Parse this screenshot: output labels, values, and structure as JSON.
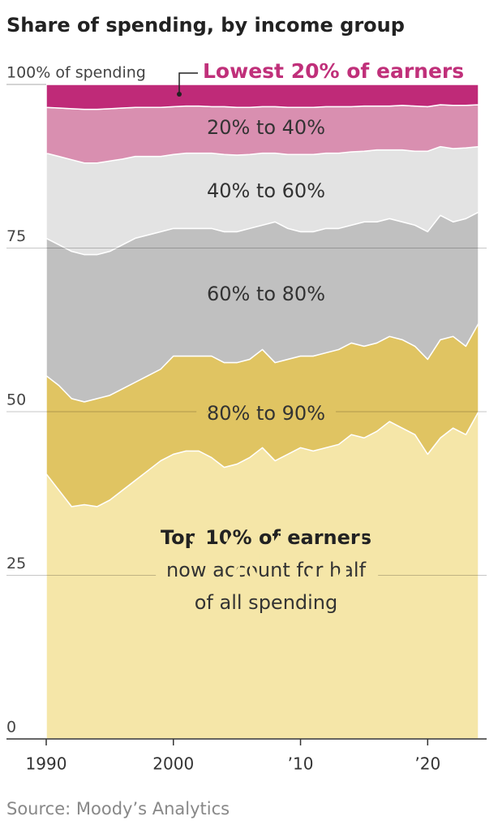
{
  "chart_data": {
    "type": "stacked_area",
    "title": "Share of spending, by income group",
    "source": "Source: Moody’s Analytics",
    "annotation": [
      "now account for half",
      "of all spending"
    ],
    "x": [
      1990,
      1991,
      1992,
      1993,
      1994,
      1995,
      1996,
      1997,
      1998,
      1999,
      2000,
      2001,
      2002,
      2003,
      2004,
      2005,
      2006,
      2007,
      2008,
      2009,
      2010,
      2011,
      2012,
      2013,
      2014,
      2015,
      2016,
      2017,
      2018,
      2019,
      2020,
      2021,
      2022,
      2023,
      2024
    ],
    "xlim": [
      1990,
      2024
    ],
    "xticks": [
      1990,
      2000,
      {
        "value": 2010,
        "label": "’10"
      },
      {
        "value": 2020,
        "label": "’20"
      }
    ],
    "ylim": [
      0,
      100
    ],
    "yticks": [
      0,
      25,
      50,
      75,
      {
        "value": 100,
        "label": "100% of spending"
      }
    ],
    "grid": true,
    "series": [
      {
        "name": "Top 10% of earners",
        "color": "#f5e6a8",
        "values": [
          40.5,
          38,
          35.5,
          35.8,
          35.5,
          36.5,
          38,
          39.5,
          41,
          42.5,
          43.5,
          44,
          44,
          43,
          41.5,
          42,
          43,
          44.5,
          42.5,
          43.5,
          44.5,
          44,
          44.5,
          45,
          46.5,
          46,
          47,
          48.5,
          47.5,
          46.5,
          43.5,
          46,
          47.5,
          46.5,
          50
        ]
      },
      {
        "name": "80% to 90%",
        "color": "#e0c462",
        "values": [
          15,
          16,
          16.5,
          15.7,
          16.5,
          16,
          15.5,
          15,
          14.5,
          14,
          15,
          14.5,
          14.5,
          15.5,
          16,
          15.5,
          15,
          15,
          15,
          14.5,
          14,
          14.5,
          14.5,
          14.5,
          14,
          14,
          13.5,
          13,
          13.5,
          13.5,
          14.5,
          15,
          14,
          13.5,
          13.5
        ]
      },
      {
        "name": "60% to 80%",
        "color": "#c0c0c0",
        "values": [
          21,
          21.5,
          22.5,
          22.5,
          22,
          22,
          22,
          22,
          21.5,
          21,
          19.5,
          19.5,
          19.5,
          19.5,
          20,
          20,
          20,
          19,
          21.5,
          20,
          19,
          19,
          19,
          18.5,
          18,
          19,
          18.5,
          18,
          18,
          18.5,
          19.5,
          19,
          17.5,
          19.5,
          17
        ]
      },
      {
        "name": "40% to 60%",
        "color": "#e3e3e3",
        "values": [
          13,
          13.5,
          14,
          14,
          14,
          13.8,
          13.1,
          12.5,
          12,
          11.5,
          11.3,
          11.5,
          11.5,
          11.5,
          11.8,
          11.7,
          11.3,
          11,
          10.5,
          11.3,
          11.8,
          11.8,
          11.5,
          11.5,
          11.2,
          10.8,
          11,
          10.5,
          11,
          11.3,
          12.3,
          10.5,
          11.2,
          10.8,
          10
        ]
      },
      {
        "name": "20% to 40%",
        "color": "#d98fb0",
        "values": [
          7,
          7.4,
          7.8,
          8.2,
          8.2,
          8,
          7.8,
          7.5,
          7.5,
          7.5,
          7.3,
          7.2,
          7.2,
          7.1,
          7.3,
          7.3,
          7.2,
          7.1,
          7.1,
          7.2,
          7.2,
          7.2,
          7.1,
          7.1,
          6.9,
          6.9,
          6.7,
          6.7,
          6.8,
          6.9,
          6.8,
          6.4,
          6.6,
          6.5,
          6.4
        ]
      },
      {
        "name": "Lowest 20% of earners",
        "color": "#bf2a78",
        "values": [
          3.5,
          3.6,
          3.7,
          3.8,
          3.8,
          3.7,
          3.6,
          3.5,
          3.5,
          3.5,
          3.4,
          3.3,
          3.3,
          3.4,
          3.4,
          3.5,
          3.5,
          3.4,
          3.4,
          3.5,
          3.5,
          3.5,
          3.4,
          3.4,
          3.4,
          3.3,
          3.3,
          3.3,
          3.2,
          3.3,
          3.4,
          3.1,
          3.2,
          3.2,
          3.1
        ]
      }
    ]
  }
}
